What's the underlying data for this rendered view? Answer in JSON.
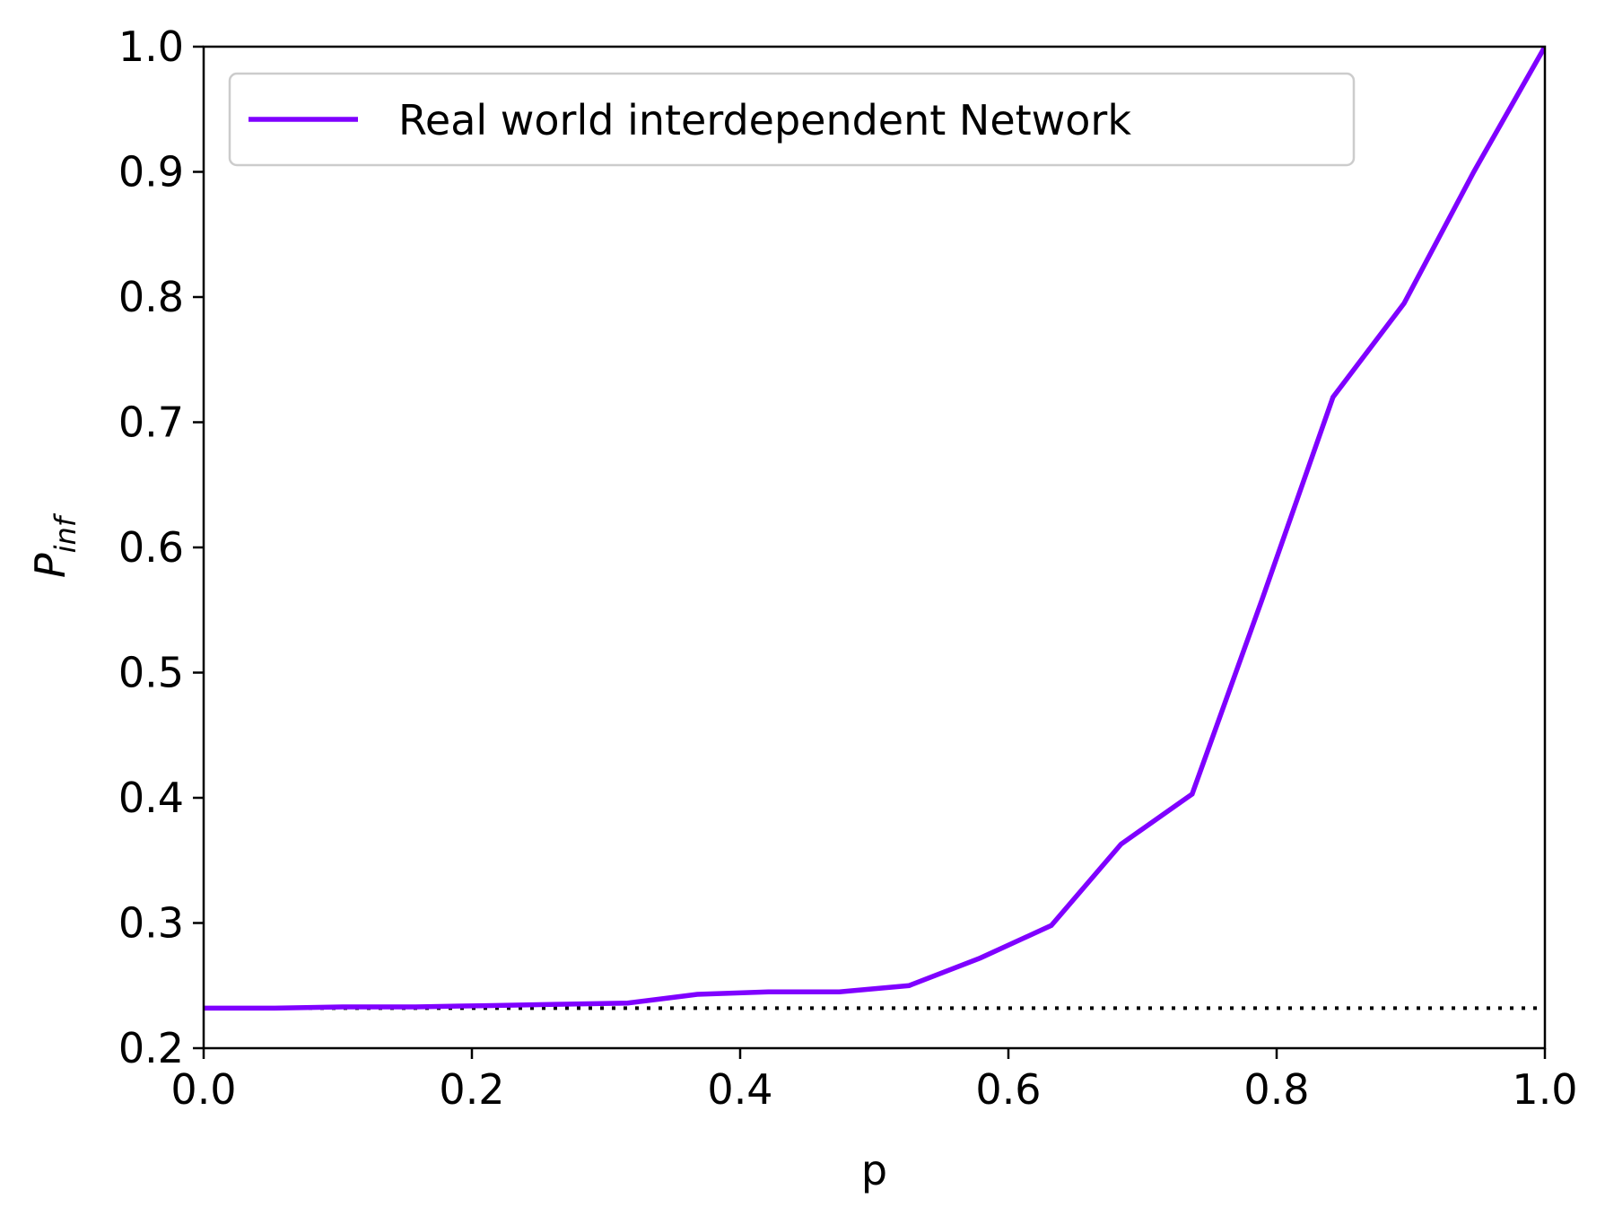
{
  "chart_data": {
    "type": "line",
    "title": "",
    "xlabel": "p",
    "ylabel": {
      "main": "P",
      "subscript": "inf"
    },
    "xlim": [
      0.0,
      1.0
    ],
    "ylim": [
      0.2,
      1.0
    ],
    "xticks": [
      0.0,
      0.2,
      0.4,
      0.6,
      0.8,
      1.0
    ],
    "xtick_labels": [
      "0.0",
      "0.2",
      "0.4",
      "0.6",
      "0.8",
      "1.0"
    ],
    "yticks": [
      0.2,
      0.3,
      0.4,
      0.5,
      0.6,
      0.7,
      0.8,
      0.9,
      1.0
    ],
    "ytick_labels": [
      "0.2",
      "0.3",
      "0.4",
      "0.5",
      "0.6",
      "0.7",
      "0.8",
      "0.9",
      "1.0"
    ],
    "grid": false,
    "legend_position": "top-left",
    "series": [
      {
        "name": "Real world interdependent Network",
        "color": "#7f00ff",
        "style": "solid",
        "x": [
          0.0,
          0.053,
          0.105,
          0.158,
          0.211,
          0.263,
          0.316,
          0.368,
          0.421,
          0.474,
          0.526,
          0.579,
          0.632,
          0.684,
          0.737,
          0.789,
          0.842,
          0.895,
          0.947,
          1.0
        ],
        "y": [
          0.232,
          0.232,
          0.233,
          0.233,
          0.234,
          0.235,
          0.236,
          0.243,
          0.245,
          0.245,
          0.25,
          0.272,
          0.298,
          0.363,
          0.403,
          0.558,
          0.72,
          0.795,
          0.9,
          1.0
        ]
      }
    ],
    "reference_line": {
      "y": 0.232,
      "color": "#000000",
      "style": "dotted"
    }
  }
}
